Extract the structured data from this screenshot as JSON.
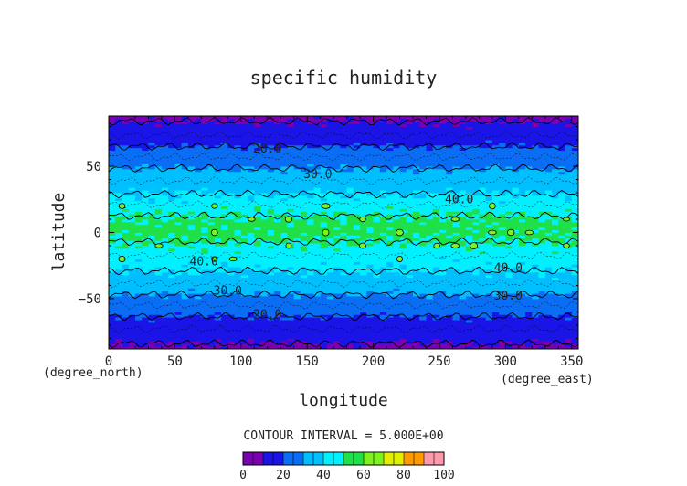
{
  "chart_data": {
    "type": "heatmap",
    "title": "specific humidity",
    "xlabel": "longitude",
    "ylabel": "latitude",
    "x_unit": "(degree_east)",
    "y_unit": "(degree_north)",
    "xlim": [
      0,
      355
    ],
    "ylim": [
      -88,
      88
    ],
    "x_ticks": [
      0,
      50,
      100,
      150,
      200,
      250,
      300,
      350
    ],
    "y_ticks": [
      50,
      0,
      -50
    ],
    "y_tick_labels": [
      "50",
      "0",
      "−50"
    ],
    "contour_interval_text": "CONTOUR INTERVAL = 5.000E+00",
    "colorbar": {
      "levels": [
        0,
        10,
        20,
        30,
        40,
        50,
        60,
        70,
        80,
        90,
        100
      ],
      "tick_labels": [
        "0",
        "20",
        "40",
        "60",
        "80",
        "100"
      ],
      "colors": [
        "#7a00b0",
        "#1a14e6",
        "#0a6ef5",
        "#00bfff",
        "#00f0ff",
        "#20e048",
        "#7ef21e",
        "#e0f000",
        "#ff9a00",
        "#ff1a1a",
        "#ff9aaa"
      ]
    },
    "zonal_profile": {
      "latitude": [
        -88,
        -75,
        -65,
        -55,
        -45,
        -35,
        -25,
        -15,
        -5,
        5,
        15,
        25,
        35,
        45,
        55,
        65,
        75,
        88
      ],
      "humidity": [
        8,
        14,
        19,
        25,
        31,
        37,
        42,
        46,
        51,
        53,
        49,
        42,
        37,
        32,
        26,
        20,
        14,
        8
      ]
    },
    "contour_labels": [
      {
        "text": "20.0",
        "lon": 120,
        "lat": 63
      },
      {
        "text": "30.0",
        "lon": 158,
        "lat": 44
      },
      {
        "text": "40.0",
        "lon": 265,
        "lat": 25
      },
      {
        "text": "40.0",
        "lon": 72,
        "lat": -22
      },
      {
        "text": "40.0",
        "lon": 302,
        "lat": -27
      },
      {
        "text": "30.0",
        "lon": 90,
        "lat": -44
      },
      {
        "text": "30.0",
        "lon": 302,
        "lat": -48
      },
      {
        "text": "20.0",
        "lon": 120,
        "lat": -62
      }
    ]
  }
}
